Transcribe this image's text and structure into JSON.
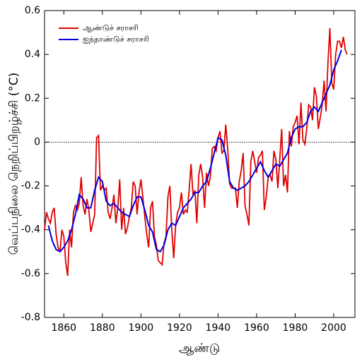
{
  "chart_data": {
    "type": "line",
    "xlabel": "ஆண்டு",
    "ylabel": "வெப்பநிலை நெறிப்பிறழ்ச்சி (°C)",
    "xlim": [
      1850,
      2011
    ],
    "xticks": [
      1860,
      1880,
      1900,
      1920,
      1940,
      1960,
      1980,
      2000
    ],
    "ylim": [
      -0.8,
      0.6
    ],
    "yticks": [
      -0.8,
      -0.6,
      -0.4,
      -0.2,
      0,
      0.2,
      0.4,
      0.6
    ],
    "zero_line": true,
    "legend": "upper left",
    "series": [
      {
        "name": "ஆண்டுச் சராசரி",
        "color": "#e00000",
        "x": [
          1850,
          1851,
          1852,
          1853,
          1854,
          1855,
          1856,
          1857,
          1858,
          1859,
          1860,
          1861,
          1862,
          1863,
          1864,
          1865,
          1866,
          1867,
          1868,
          1869,
          1870,
          1871,
          1872,
          1873,
          1874,
          1875,
          1876,
          1877,
          1878,
          1879,
          1880,
          1881,
          1882,
          1883,
          1884,
          1885,
          1886,
          1887,
          1888,
          1889,
          1890,
          1891,
          1892,
          1893,
          1894,
          1895,
          1896,
          1897,
          1898,
          1899,
          1900,
          1901,
          1902,
          1903,
          1904,
          1905,
          1906,
          1907,
          1908,
          1909,
          1910,
          1911,
          1912,
          1913,
          1914,
          1915,
          1916,
          1917,
          1918,
          1919,
          1920,
          1921,
          1922,
          1923,
          1924,
          1925,
          1926,
          1927,
          1928,
          1929,
          1930,
          1931,
          1932,
          1933,
          1934,
          1935,
          1936,
          1937,
          1938,
          1939,
          1940,
          1941,
          1942,
          1943,
          1944,
          1945,
          1946,
          1947,
          1948,
          1949,
          1950,
          1951,
          1952,
          1953,
          1954,
          1955,
          1956,
          1957,
          1958,
          1959,
          1960,
          1961,
          1962,
          1963,
          1964,
          1965,
          1966,
          1967,
          1968,
          1969,
          1970,
          1971,
          1972,
          1973,
          1974,
          1975,
          1976,
          1977,
          1978,
          1979,
          1980,
          1981,
          1982,
          1983,
          1984,
          1985,
          1986,
          1987,
          1988,
          1989,
          1990,
          1991,
          1992,
          1993,
          1994,
          1995,
          1996,
          1997,
          1998,
          1999,
          2000,
          2001,
          2002,
          2003,
          2004,
          2005,
          2006,
          2007
        ],
        "values": [
          -0.4,
          -0.32,
          -0.35,
          -0.37,
          -0.32,
          -0.3,
          -0.42,
          -0.48,
          -0.5,
          -0.4,
          -0.43,
          -0.55,
          -0.61,
          -0.4,
          -0.48,
          -0.32,
          -0.29,
          -0.31,
          -0.28,
          -0.16,
          -0.29,
          -0.33,
          -0.26,
          -0.31,
          -0.41,
          -0.37,
          -0.33,
          0.02,
          0.03,
          -0.22,
          -0.2,
          -0.22,
          -0.21,
          -0.32,
          -0.35,
          -0.3,
          -0.24,
          -0.37,
          -0.3,
          -0.17,
          -0.4,
          -0.3,
          -0.42,
          -0.39,
          -0.34,
          -0.3,
          -0.18,
          -0.2,
          -0.33,
          -0.23,
          -0.17,
          -0.25,
          -0.34,
          -0.42,
          -0.48,
          -0.3,
          -0.27,
          -0.43,
          -0.47,
          -0.54,
          -0.55,
          -0.56,
          -0.46,
          -0.43,
          -0.25,
          -0.2,
          -0.4,
          -0.53,
          -0.38,
          -0.32,
          -0.3,
          -0.23,
          -0.33,
          -0.31,
          -0.32,
          -0.22,
          -0.1,
          -0.24,
          -0.22,
          -0.37,
          -0.15,
          -0.1,
          -0.16,
          -0.3,
          -0.14,
          -0.2,
          -0.16,
          -0.03,
          -0.02,
          -0.04,
          0.02,
          0.05,
          -0.05,
          -0.04,
          0.08,
          -0.03,
          -0.19,
          -0.21,
          -0.21,
          -0.21,
          -0.3,
          -0.18,
          -0.13,
          -0.05,
          -0.29,
          -0.33,
          -0.38,
          -0.09,
          -0.04,
          -0.09,
          -0.14,
          -0.07,
          -0.06,
          -0.04,
          -0.31,
          -0.25,
          -0.16,
          -0.15,
          -0.18,
          -0.04,
          -0.08,
          -0.21,
          -0.08,
          0.06,
          -0.2,
          -0.15,
          -0.23,
          0.05,
          -0.02,
          0.07,
          0.09,
          0.12,
          -0.01,
          0.18,
          0.01,
          -0.01,
          0.06,
          0.17,
          0.16,
          0.1,
          0.25,
          0.21,
          0.06,
          0.11,
          0.17,
          0.28,
          0.14,
          0.36,
          0.52,
          0.27,
          0.24,
          0.4,
          0.46,
          0.46,
          0.43,
          0.48,
          0.42,
          0.4
        ]
      },
      {
        "name": "ஐந்தாண்டுச் சராசரி",
        "color": "#0000e0",
        "x": [
          1852,
          1854,
          1856,
          1858,
          1860,
          1862,
          1864,
          1866,
          1868,
          1870,
          1872,
          1874,
          1876,
          1878,
          1880,
          1882,
          1884,
          1886,
          1888,
          1890,
          1892,
          1894,
          1896,
          1898,
          1900,
          1902,
          1904,
          1906,
          1908,
          1910,
          1912,
          1914,
          1916,
          1918,
          1920,
          1922,
          1924,
          1926,
          1928,
          1930,
          1932,
          1934,
          1936,
          1938,
          1940,
          1942,
          1944,
          1946,
          1948,
          1950,
          1952,
          1954,
          1956,
          1958,
          1960,
          1962,
          1964,
          1966,
          1968,
          1970,
          1972,
          1974,
          1976,
          1978,
          1980,
          1982,
          1984,
          1986,
          1988,
          1990,
          1992,
          1994,
          1996,
          1998,
          2000,
          2002,
          2004
        ],
        "values": [
          -0.38,
          -0.45,
          -0.49,
          -0.5,
          -0.48,
          -0.45,
          -0.4,
          -0.33,
          -0.24,
          -0.26,
          -0.3,
          -0.3,
          -0.22,
          -0.16,
          -0.18,
          -0.27,
          -0.29,
          -0.28,
          -0.3,
          -0.32,
          -0.33,
          -0.34,
          -0.29,
          -0.25,
          -0.25,
          -0.31,
          -0.38,
          -0.41,
          -0.49,
          -0.5,
          -0.47,
          -0.4,
          -0.37,
          -0.38,
          -0.34,
          -0.3,
          -0.28,
          -0.26,
          -0.23,
          -0.23,
          -0.2,
          -0.18,
          -0.12,
          -0.05,
          0.02,
          0.01,
          -0.06,
          -0.18,
          -0.21,
          -0.22,
          -0.21,
          -0.2,
          -0.18,
          -0.15,
          -0.12,
          -0.09,
          -0.13,
          -0.16,
          -0.13,
          -0.1,
          -0.11,
          -0.08,
          -0.05,
          0.02,
          0.06,
          0.07,
          0.07,
          0.09,
          0.14,
          0.16,
          0.14,
          0.18,
          0.22,
          0.26,
          0.33,
          0.37,
          0.42
        ]
      }
    ]
  }
}
